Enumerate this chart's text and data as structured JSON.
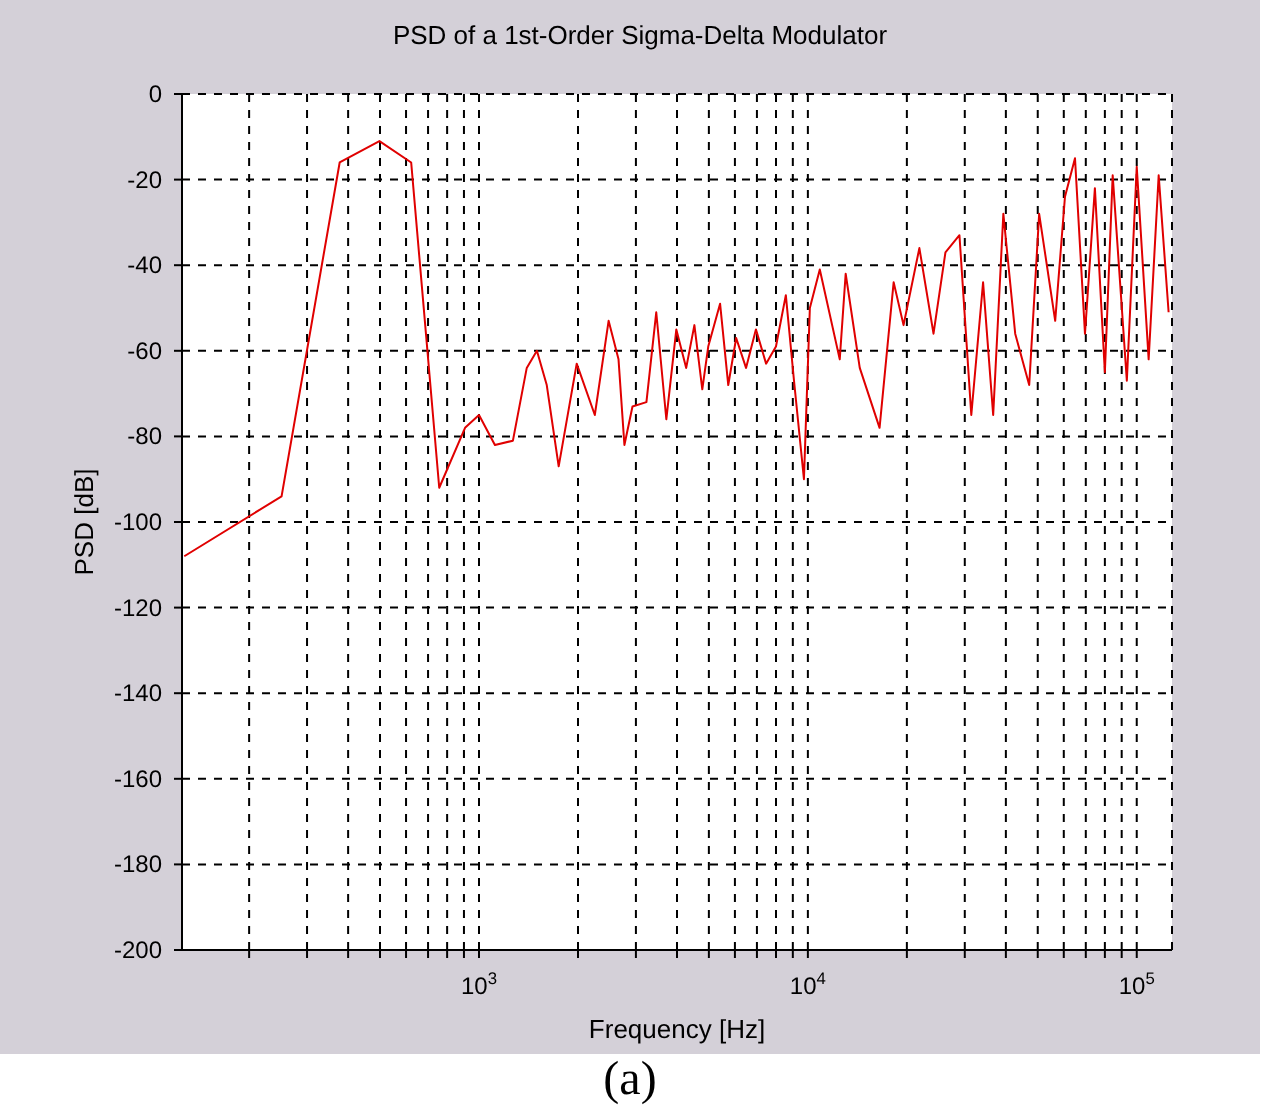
{
  "chart_data": {
    "type": "line",
    "title": "PSD of a 1st-Order Sigma-Delta Modulator",
    "xlabel": "Frequency [Hz]",
    "ylabel": "PSD [dB]",
    "annotations": [
      "(a)"
    ],
    "log": "x",
    "grid": true,
    "line_style": "solid",
    "marker": "none",
    "xlim": [
      125,
      128000
    ],
    "xticks": [
      {
        "value": 200,
        "label": null
      },
      {
        "value": 300,
        "label": null
      },
      {
        "value": 400,
        "label": null
      },
      {
        "value": 500,
        "label": null
      },
      {
        "value": 600,
        "label": null
      },
      {
        "value": 700,
        "label": null
      },
      {
        "value": 800,
        "label": null
      },
      {
        "value": 900,
        "label": null
      },
      {
        "value": 1000,
        "label": "10$^{3}$"
      },
      {
        "value": 2000,
        "label": null
      },
      {
        "value": 3000,
        "label": null
      },
      {
        "value": 4000,
        "label": null
      },
      {
        "value": 5000,
        "label": null
      },
      {
        "value": 6000,
        "label": null
      },
      {
        "value": 7000,
        "label": null
      },
      {
        "value": 8000,
        "label": null
      },
      {
        "value": 9000,
        "label": null
      },
      {
        "value": 10000,
        "label": "10$^{4}$"
      },
      {
        "value": 20000,
        "label": null
      },
      {
        "value": 30000,
        "label": null
      },
      {
        "value": 40000,
        "label": null
      },
      {
        "value": 50000,
        "label": null
      },
      {
        "value": 60000,
        "label": null
      },
      {
        "value": 70000,
        "label": null
      },
      {
        "value": 80000,
        "label": null
      },
      {
        "value": 90000,
        "label": null
      },
      {
        "value": 100000,
        "label": "10$^{5}$"
      }
    ],
    "ylim": [
      -200,
      0
    ],
    "yticks": [
      -200,
      -180,
      -160,
      -140,
      -120,
      -100,
      -80,
      -60,
      -40,
      -20,
      0
    ],
    "series": [
      {
        "color": "#e00000",
        "x": [
          127,
          251,
          377,
          498,
          622,
          757,
          907,
          1000,
          1118,
          1268,
          1397,
          1500,
          1607,
          1747,
          1982,
          2250,
          2478,
          2656,
          2768,
          2929,
          3229,
          3459,
          3712,
          3981,
          4266,
          4518,
          4775,
          4978,
          5408,
          5727,
          6053,
          6486,
          6950,
          7464,
          7998,
          8570,
          9075,
          9728,
          10140,
          10870,
          12500,
          13030,
          14380,
          16520,
          18230,
          19540,
          21830,
          24100,
          26200,
          28900,
          31400,
          34100,
          36600,
          39300,
          42700,
          47100,
          50500,
          56500,
          60500,
          64900,
          69600,
          74600,
          80000,
          84500,
          93300,
          100000,
          108700,
          116600,
          125000
        ],
        "values": [
          -108,
          -94,
          -16,
          -11,
          -16,
          -92,
          -78,
          -75,
          -82,
          -81,
          -64,
          -60,
          -68,
          -87,
          -63,
          -75,
          -53,
          -62,
          -82,
          -73,
          -72,
          -51,
          -76,
          -55,
          -64,
          -54,
          -69,
          -59,
          -49,
          -68,
          -57,
          -64,
          -55,
          -63,
          -59,
          -47,
          -67,
          -90,
          -50,
          -41,
          -62,
          -42,
          -64,
          -78,
          -44,
          -54,
          -36,
          -56,
          -37,
          -33,
          -75,
          -44,
          -75,
          -28,
          -56,
          -68,
          -28,
          -53,
          -24,
          -15,
          -56,
          -22,
          -65,
          -19,
          -67,
          -17,
          -62,
          -19,
          -51
        ]
      }
    ]
  }
}
